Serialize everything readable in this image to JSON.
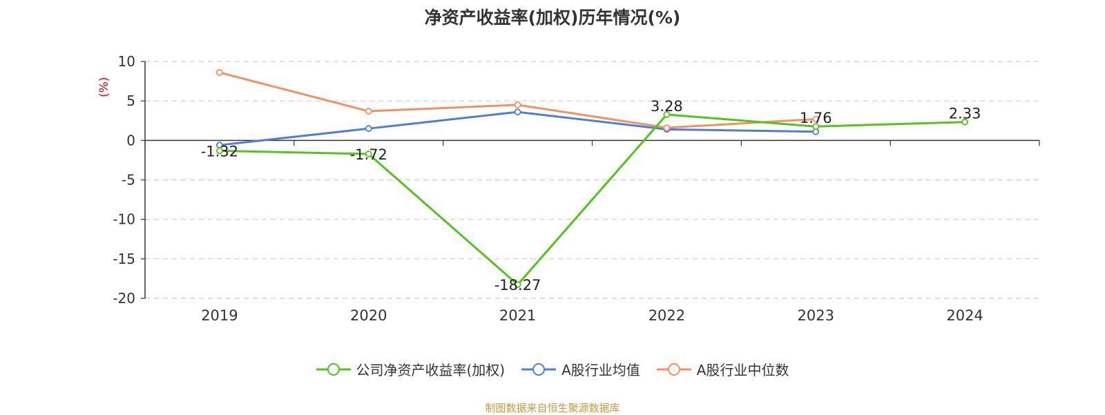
{
  "title": "净资产收益率(加权)历年情况(%)",
  "footer": "制图数据来自恒生聚源数据库",
  "colors": {
    "axis": "#333333",
    "grid": "#cccccc",
    "ylabel": "#e60000",
    "footer": "#c79a3c"
  },
  "chart_data": {
    "type": "line",
    "title": "净资产收益率(加权)历年情况(%)",
    "ylabel": "(%)",
    "xlabel": "",
    "categories": [
      "2019",
      "2020",
      "2021",
      "2022",
      "2023",
      "2024"
    ],
    "ylim": [
      -20,
      10
    ],
    "yticks": [
      10,
      5,
      0,
      -5,
      -10,
      -15,
      -20
    ],
    "grid": true,
    "legend_position": "bottom-center",
    "series": [
      {
        "name": "公司净资产收益率(加权)",
        "color": "#52c41a",
        "values": [
          -1.32,
          -1.72,
          -18.27,
          3.28,
          1.76,
          2.33
        ],
        "labels": [
          "-1.32",
          "-1.72",
          "-18.27",
          "3.28",
          "1.76",
          "2.33"
        ]
      },
      {
        "name": "A股行业均值",
        "color": "#4a7fdc",
        "values": [
          -0.6,
          1.5,
          3.6,
          1.4,
          1.1,
          null
        ]
      },
      {
        "name": "A股行业中位数",
        "color": "#f59060",
        "values": [
          8.6,
          3.7,
          4.5,
          1.6,
          2.7,
          null
        ]
      }
    ]
  }
}
